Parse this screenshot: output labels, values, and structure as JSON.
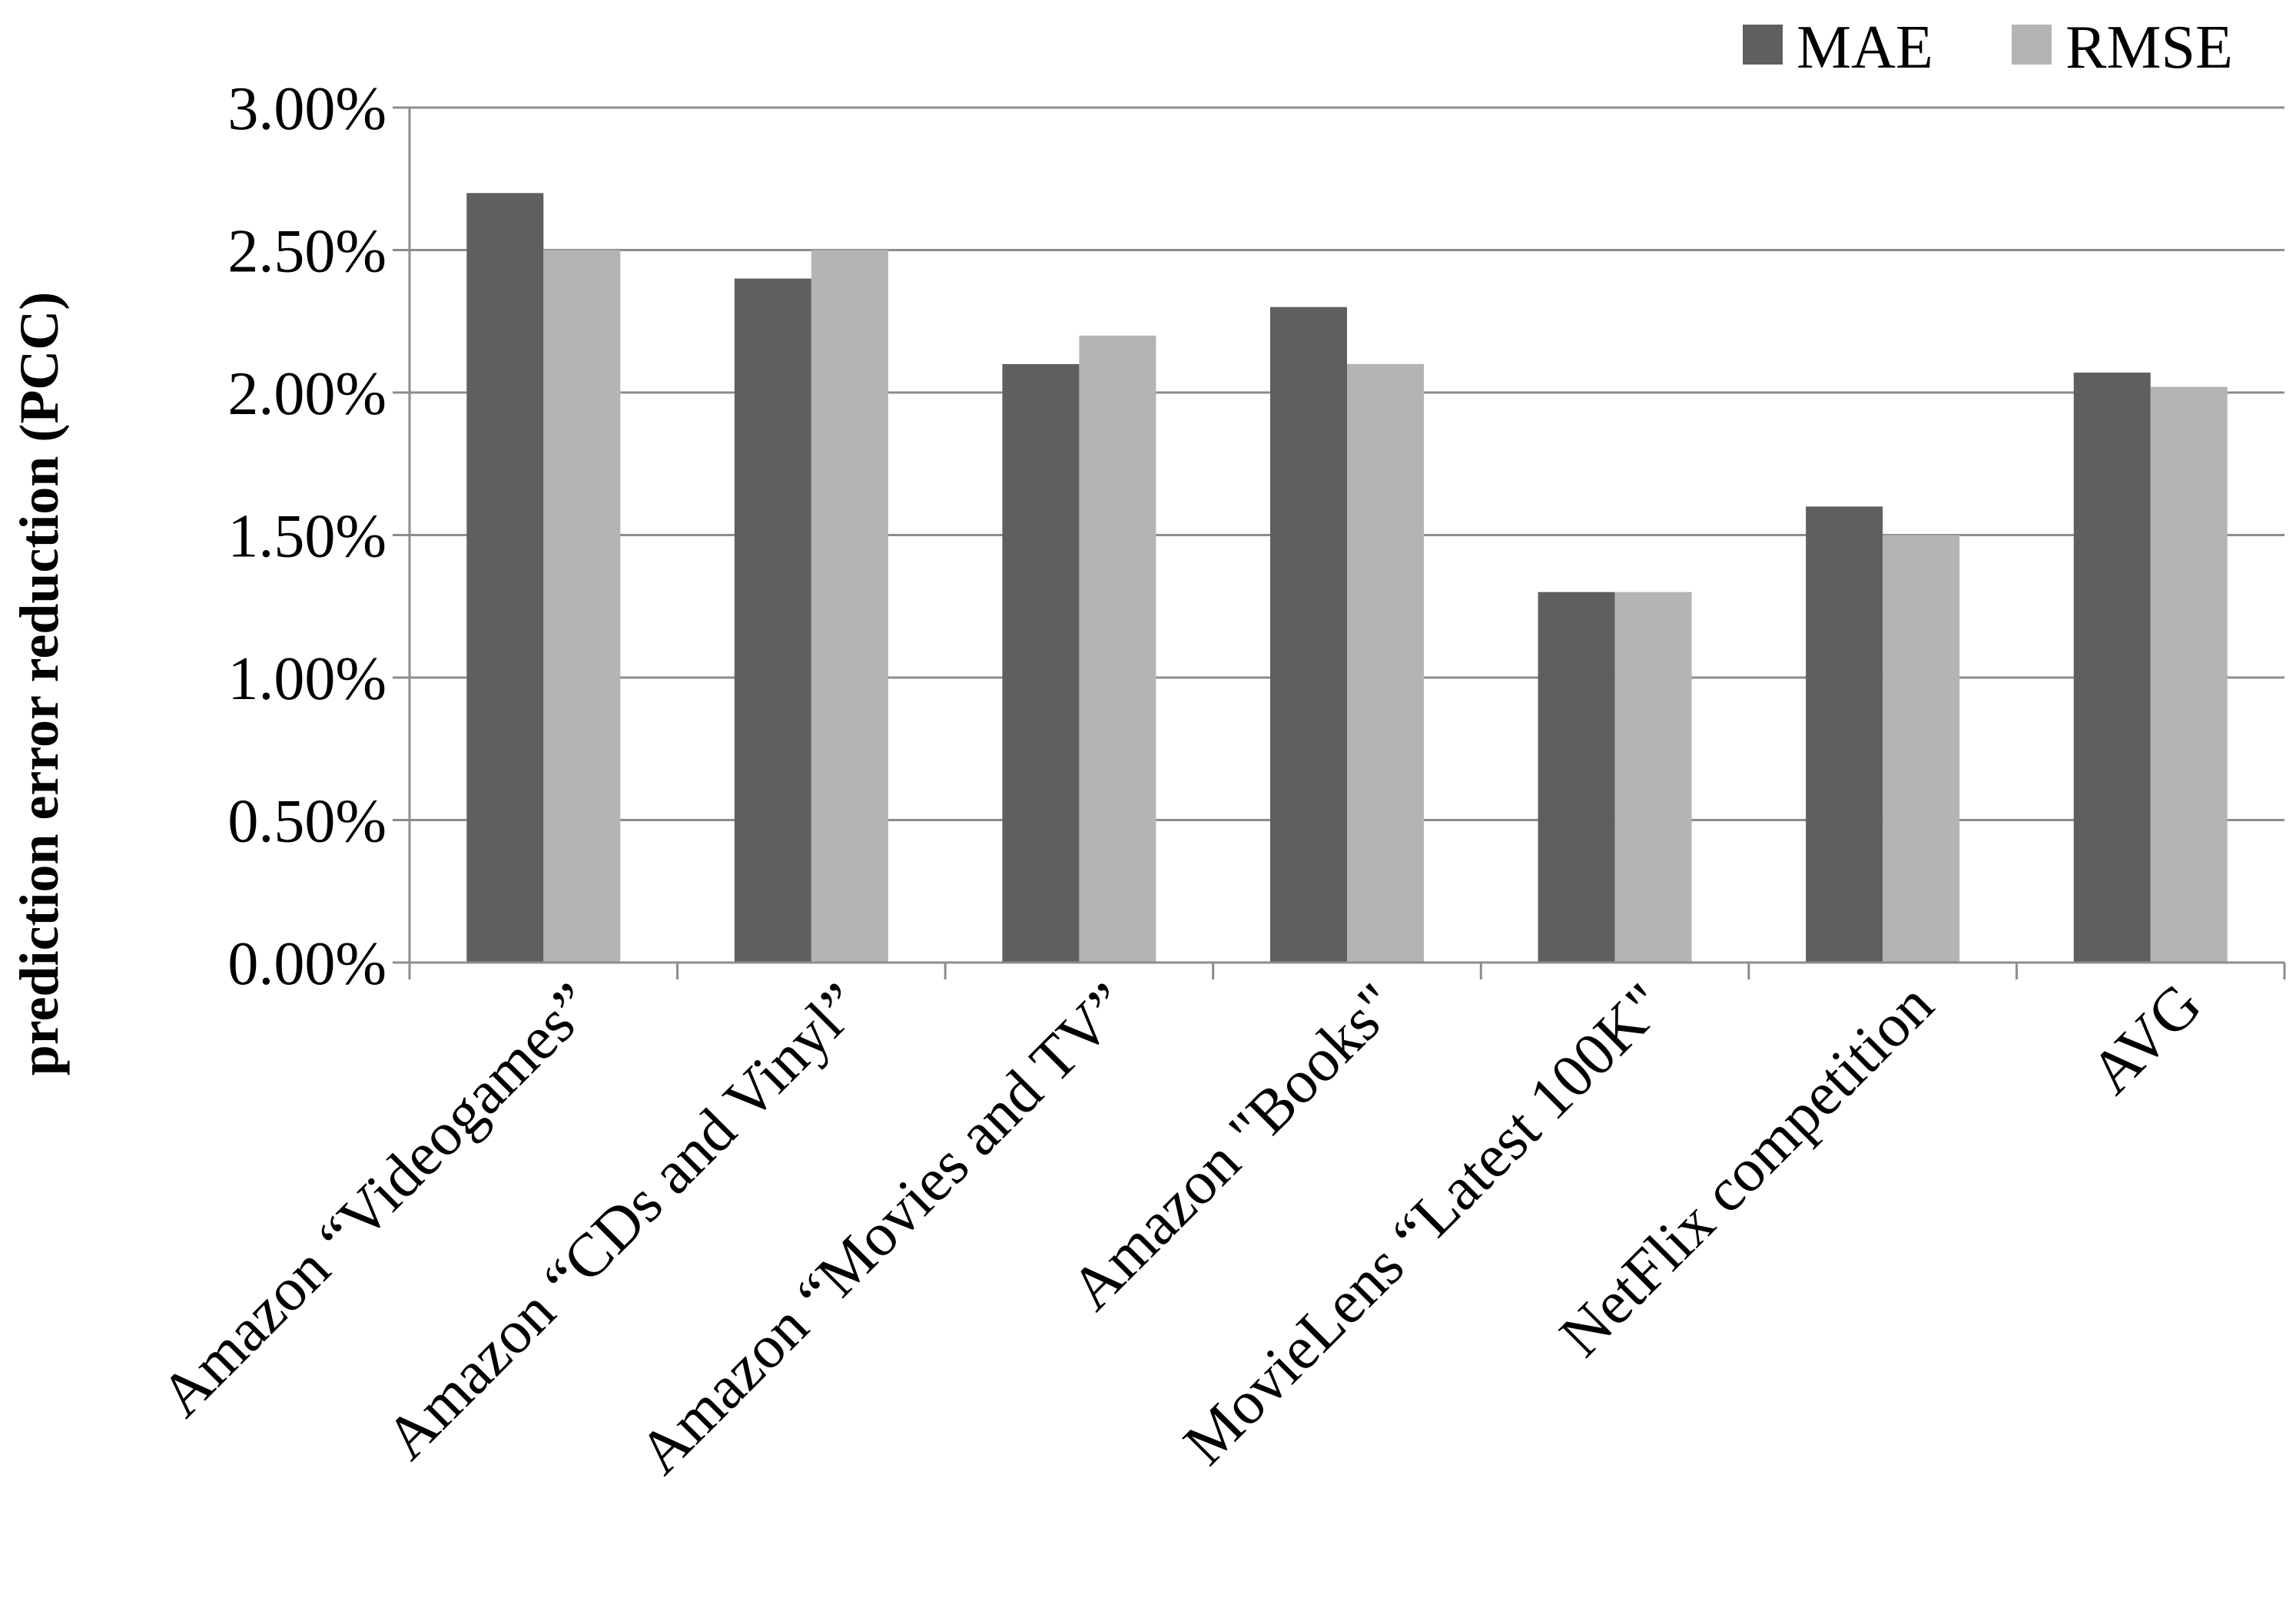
{
  "chart_data": {
    "type": "bar",
    "title": "",
    "xlabel": "",
    "ylabel": "prediction error reduction (PCC)",
    "categories": [
      "Amazon “Videogames”",
      "Amazon “CDs and Vinyl”",
      "Amazon “Movies and TV”",
      "Amazon \"Books\"",
      "MovieLens “Latest 100K\"",
      "NetFlix competition",
      "AVG"
    ],
    "series": [
      {
        "name": "MAE",
        "color": "#5f5f5f",
        "values": [
          2.7,
          2.4,
          2.1,
          2.3,
          1.3,
          1.6,
          2.07
        ]
      },
      {
        "name": "RMSE",
        "color": "#b4b4b4",
        "values": [
          2.5,
          2.5,
          2.2,
          2.1,
          1.3,
          1.5,
          2.02
        ]
      }
    ],
    "ylim": [
      0,
      3
    ],
    "yticks": [
      0,
      0.5,
      1,
      1.5,
      2,
      2.5,
      3
    ],
    "ytick_labels": [
      "0.00%",
      "0.50%",
      "1.00%",
      "1.50%",
      "2.00%",
      "2.50%",
      "3.00%"
    ],
    "grid": true,
    "legend_position": "top-right"
  }
}
